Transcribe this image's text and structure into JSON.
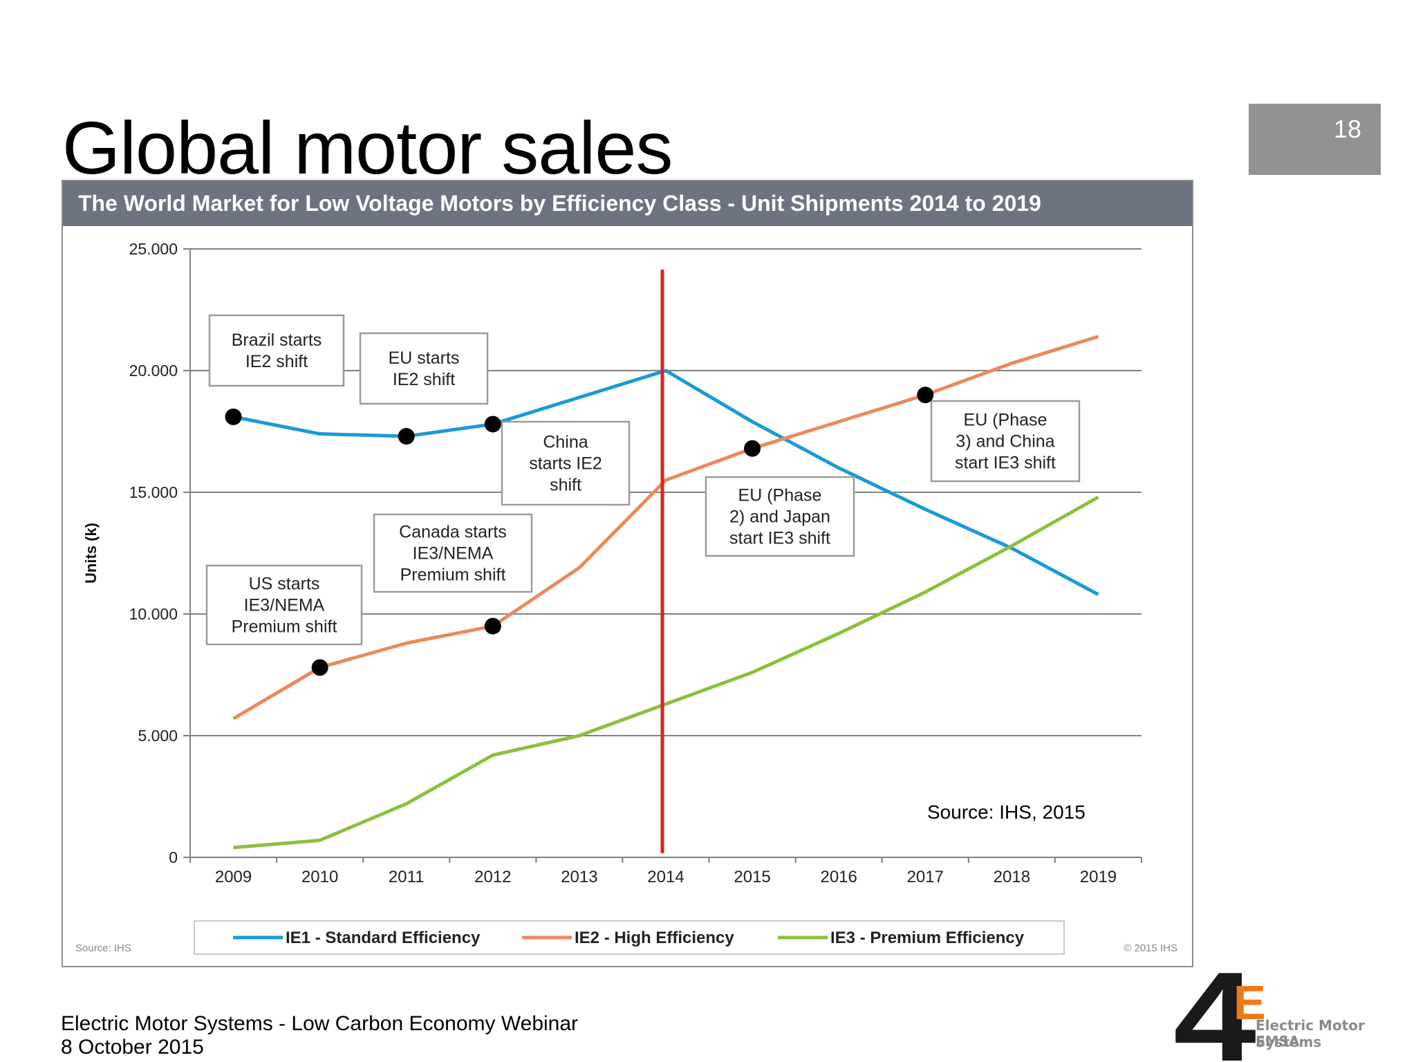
{
  "slide": {
    "title": "Global motor sales",
    "page_number": "18"
  },
  "footer": {
    "line1": "Electric Motor Systems - Low Carbon Economy Webinar",
    "line2": "8 October 2015"
  },
  "logo": {
    "mark": "4E",
    "line1": "Electric Motor Systems",
    "line2": "EMSA"
  },
  "colors": {
    "IE1": "#1a9ad6",
    "IE2": "#ea8a5e",
    "IE3": "#8cbf3f",
    "marker_line": "#e2201b",
    "header_bg": "#6d7380"
  },
  "chart_data": {
    "type": "line",
    "title": "The World Market for Low Voltage Motors by Efficiency Class - Unit Shipments 2014 to 2019",
    "ylabel": "Units (k)",
    "xlabel": "",
    "ylim": [
      0,
      25000
    ],
    "yticks": [
      "0",
      "5.000",
      "10.000",
      "15.000",
      "20.000",
      "25.000"
    ],
    "grid": "horizontal",
    "categories": [
      "2009",
      "2010",
      "2011",
      "2012",
      "2013",
      "2014",
      "2015",
      "2016",
      "2017",
      "2018",
      "2019"
    ],
    "series": [
      {
        "name": "IE1 - Standard Efficiency",
        "values": [
          18100,
          17400,
          17300,
          17800,
          18900,
          20000,
          17900,
          16000,
          14300,
          12700,
          10800
        ]
      },
      {
        "name": "IE2 - High Efficiency",
        "values": [
          5700,
          7800,
          8800,
          9500,
          11900,
          15500,
          16800,
          17900,
          19000,
          20300,
          21400
        ]
      },
      {
        "name": "IE3 - Premium Efficiency",
        "values": [
          400,
          700,
          2200,
          4200,
          5000,
          6300,
          7600,
          9200,
          10900,
          12800,
          14800
        ]
      }
    ],
    "vertical_marker": "2014",
    "legend_position": "bottom",
    "events": [
      {
        "label": [
          "Brazil starts",
          "IE2 shift"
        ],
        "series": 0,
        "year": "2009"
      },
      {
        "label": [
          "EU starts",
          "IE2 shift"
        ],
        "series": 0,
        "year": "2011"
      },
      {
        "label": [
          "China",
          "starts IE2",
          "shift"
        ],
        "series": 0,
        "year": "2012"
      },
      {
        "label": [
          "US starts",
          "IE3/NEMA",
          "Premium shift"
        ],
        "series": 1,
        "year": "2010"
      },
      {
        "label": [
          "Canada starts",
          "IE3/NEMA",
          "Premium shift"
        ],
        "series": 1,
        "year": "2012"
      },
      {
        "label": [
          "EU (Phase",
          "2) and Japan",
          "start IE3 shift"
        ],
        "series": 1,
        "year": "2015"
      },
      {
        "label": [
          "EU (Phase",
          "3) and China",
          "start IE3 shift"
        ],
        "series": 1,
        "year": "2017"
      }
    ],
    "annotation": "Source: IHS,  2015",
    "source_note": "Source: IHS",
    "copyright": "© 2015 IHS"
  }
}
